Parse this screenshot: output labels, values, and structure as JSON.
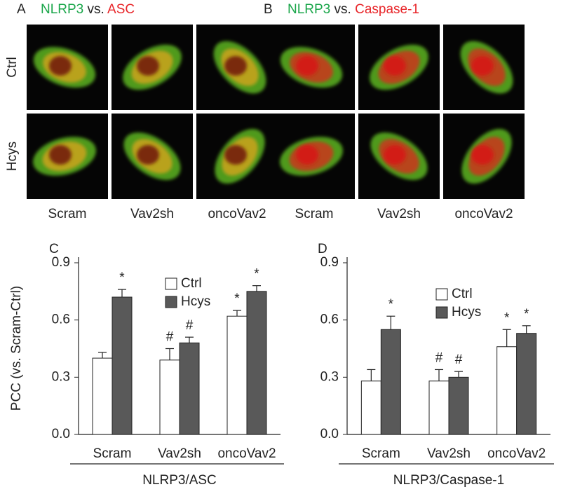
{
  "panels": [
    {
      "label": "A",
      "title": [
        "NLRP3",
        "vs.",
        "ASC"
      ]
    },
    {
      "label": "B",
      "title": [
        "NLRP3",
        "vs.",
        "Caspase-1"
      ]
    }
  ],
  "rows": [
    "Ctrl",
    "Hcys"
  ],
  "columns": [
    "Scram",
    "Vav2sh",
    "oncoVav2"
  ],
  "chart_data": [
    {
      "type": "bar",
      "label": "C",
      "ylabel": "PCC (vs. Scram-Ctrl)",
      "xlabel": "NLRP3/ASC",
      "categories": [
        "Scram",
        "Vav2sh",
        "oncoVav2"
      ],
      "ylim": [
        0,
        0.9
      ],
      "yticks": [
        {
          "value": 0,
          "label": "0.0"
        },
        0.3,
        0.6,
        0.9
      ],
      "series": [
        {
          "name": "Ctrl",
          "color": "#ffffff",
          "values": [
            0.4,
            0.39,
            0.62
          ],
          "errors": [
            0.03,
            0.06,
            0.03
          ],
          "markers": [
            null,
            "#",
            "*"
          ]
        },
        {
          "name": "Hcys",
          "color": "#595959",
          "values": [
            0.72,
            0.48,
            0.75
          ],
          "errors": [
            0.04,
            0.03,
            0.03
          ],
          "markers": [
            "*",
            "#",
            "*"
          ]
        }
      ]
    },
    {
      "type": "bar",
      "label": "D",
      "xlabel": "NLRP3/Caspase-1",
      "categories": [
        "Scram",
        "Vav2sh",
        "oncoVav2"
      ],
      "ylim": [
        0,
        0.9
      ],
      "yticks": [
        {
          "value": 0,
          "label": "0.0"
        },
        0.3,
        0.6,
        0.9
      ],
      "series": [
        {
          "name": "Ctrl",
          "color": "#ffffff",
          "values": [
            0.28,
            0.28,
            0.46
          ],
          "errors": [
            0.06,
            0.06,
            0.09
          ],
          "markers": [
            null,
            "#",
            "*"
          ]
        },
        {
          "name": "Hcys",
          "color": "#595959",
          "values": [
            0.55,
            0.3,
            0.53
          ],
          "errors": [
            0.07,
            0.03,
            0.04
          ],
          "markers": [
            "*",
            "#",
            "*"
          ]
        }
      ]
    }
  ]
}
